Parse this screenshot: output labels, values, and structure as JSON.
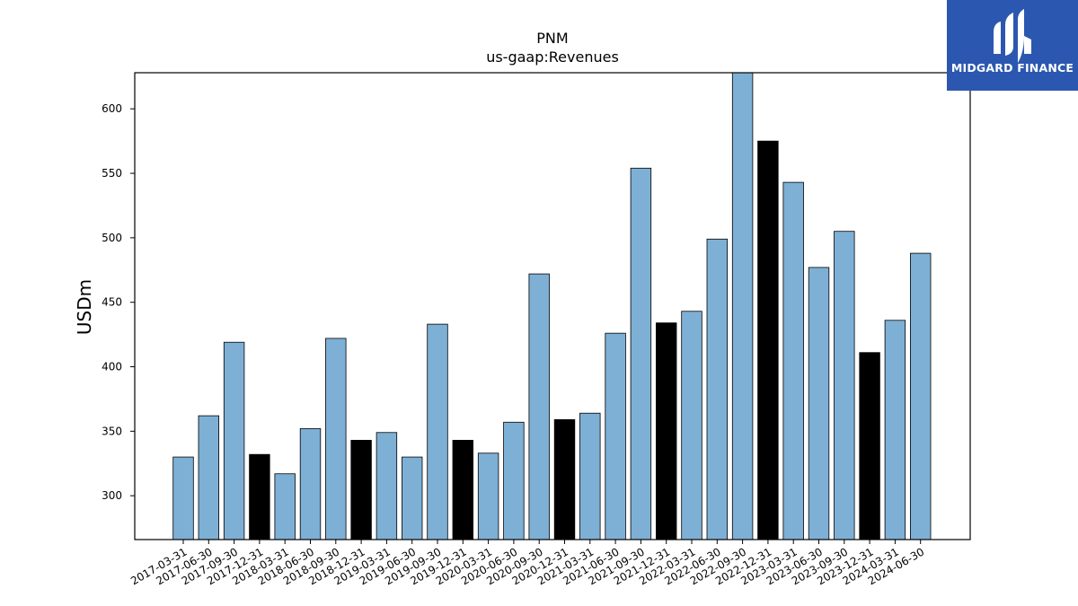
{
  "chart_data": {
    "type": "bar",
    "title": "PNM",
    "subtitle": "us-gaap:Revenues",
    "xlabel": "",
    "ylabel": "USDm",
    "ylim": [
      266,
      628
    ],
    "yticks": [
      300,
      350,
      400,
      450,
      500,
      550,
      600
    ],
    "grid": false,
    "categories": [
      "2017-03-31",
      "2017-06-30",
      "2017-09-30",
      "2017-12-31",
      "2018-03-31",
      "2018-06-30",
      "2018-09-30",
      "2018-12-31",
      "2019-03-31",
      "2019-06-30",
      "2019-09-30",
      "2019-12-31",
      "2020-03-31",
      "2020-06-30",
      "2020-09-30",
      "2020-12-31",
      "2021-03-31",
      "2021-06-30",
      "2021-09-30",
      "2021-12-31",
      "2022-03-31",
      "2022-06-30",
      "2022-09-30",
      "2022-12-31",
      "2023-03-31",
      "2023-06-30",
      "2023-09-30",
      "2023-12-31",
      "2024-03-31",
      "2024-06-30"
    ],
    "values": [
      330,
      362,
      419,
      332,
      317,
      352,
      422,
      343,
      349,
      330,
      433,
      343,
      333,
      357,
      472,
      359,
      364,
      426,
      554,
      434,
      443,
      499,
      628,
      575,
      543,
      477,
      505,
      411,
      436,
      488
    ],
    "colors": {
      "quarter": "#7eb0d5",
      "year_end": "#000000",
      "edge": "#000000"
    }
  },
  "logo": {
    "text": "MIDGARD FINANCE",
    "background": "#2b57b0"
  }
}
